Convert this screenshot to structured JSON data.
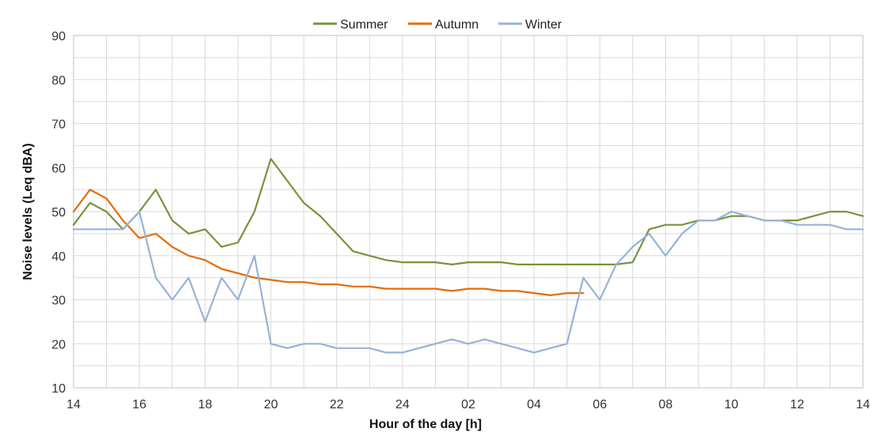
{
  "chart_data": {
    "type": "line",
    "title": "",
    "xlabel": "Hour of the day [h]",
    "ylabel": "Noise levels (Leq dBA)",
    "ylim": [
      10,
      90
    ],
    "y_ticks": [
      10,
      20,
      30,
      40,
      50,
      60,
      70,
      80,
      90
    ],
    "x_range_hours_elapsed": [
      0,
      24
    ],
    "x_tick_labels": [
      "14",
      "16",
      "18",
      "20",
      "22",
      "24",
      "02",
      "04",
      "06",
      "08",
      "10",
      "12",
      "14"
    ],
    "grid": true,
    "legend_position": "top-center",
    "series": [
      {
        "name": "Summer",
        "color": "#77933C",
        "points": [
          [
            14.0,
            47
          ],
          [
            14.5,
            52
          ],
          [
            15.0,
            50
          ],
          [
            15.5,
            46
          ],
          [
            16.0,
            50
          ],
          [
            16.5,
            55
          ],
          [
            17.0,
            48
          ],
          [
            17.5,
            45
          ],
          [
            18.0,
            46
          ],
          [
            18.5,
            42
          ],
          [
            19.0,
            43
          ],
          [
            19.5,
            50
          ],
          [
            20.0,
            62
          ],
          [
            20.5,
            57
          ],
          [
            21.0,
            52
          ],
          [
            21.5,
            49
          ],
          [
            22.0,
            45
          ],
          [
            22.5,
            41
          ],
          [
            23.0,
            40
          ],
          [
            23.5,
            39
          ],
          [
            24.0,
            38.5
          ],
          [
            24.5,
            38.5
          ],
          [
            25.0,
            38.5
          ],
          [
            25.5,
            38
          ],
          [
            26.0,
            38.5
          ],
          [
            26.5,
            38.5
          ],
          [
            27.0,
            38.5
          ],
          [
            27.5,
            38
          ],
          [
            28.0,
            38
          ],
          [
            28.5,
            38
          ],
          [
            29.0,
            38
          ],
          [
            29.5,
            38
          ],
          [
            30.0,
            38
          ],
          [
            30.5,
            38
          ],
          [
            31.0,
            38.5
          ],
          [
            31.5,
            46
          ],
          [
            32.0,
            47
          ],
          [
            32.5,
            47
          ],
          [
            33.0,
            48
          ],
          [
            33.5,
            48
          ],
          [
            34.0,
            49
          ],
          [
            34.5,
            49
          ],
          [
            35.0,
            48
          ],
          [
            35.5,
            48
          ],
          [
            36.0,
            48
          ],
          [
            36.5,
            49
          ],
          [
            37.0,
            50
          ],
          [
            37.5,
            50
          ],
          [
            38.0,
            49
          ]
        ]
      },
      {
        "name": "Autumn",
        "color": "#E36C09",
        "points": [
          [
            14.0,
            50
          ],
          [
            14.5,
            55
          ],
          [
            15.0,
            53
          ],
          [
            15.5,
            48
          ],
          [
            16.0,
            44
          ],
          [
            16.5,
            45
          ],
          [
            17.0,
            42
          ],
          [
            17.5,
            40
          ],
          [
            18.0,
            39
          ],
          [
            18.5,
            37
          ],
          [
            19.0,
            36
          ],
          [
            19.5,
            35
          ],
          [
            20.0,
            34.5
          ],
          [
            20.5,
            34
          ],
          [
            21.0,
            34
          ],
          [
            21.5,
            33.5
          ],
          [
            22.0,
            33.5
          ],
          [
            22.5,
            33
          ],
          [
            23.0,
            33
          ],
          [
            23.5,
            32.5
          ],
          [
            24.0,
            32.5
          ],
          [
            24.5,
            32.5
          ],
          [
            25.0,
            32.5
          ],
          [
            25.5,
            32
          ],
          [
            26.0,
            32.5
          ],
          [
            26.5,
            32.5
          ],
          [
            27.0,
            32
          ],
          [
            27.5,
            32
          ],
          [
            28.0,
            31.5
          ],
          [
            28.5,
            31
          ],
          [
            29.0,
            31.5
          ],
          [
            29.5,
            31.5
          ]
        ]
      },
      {
        "name": "Winter",
        "color": "#95B3D7",
        "points": [
          [
            14.0,
            46
          ],
          [
            14.5,
            46
          ],
          [
            15.0,
            46
          ],
          [
            15.5,
            46
          ],
          [
            16.0,
            50
          ],
          [
            16.5,
            35
          ],
          [
            17.0,
            30
          ],
          [
            17.5,
            35
          ],
          [
            18.0,
            25
          ],
          [
            18.5,
            35
          ],
          [
            19.0,
            30
          ],
          [
            19.5,
            40
          ],
          [
            20.0,
            20
          ],
          [
            20.5,
            19
          ],
          [
            21.0,
            20
          ],
          [
            21.5,
            20
          ],
          [
            22.0,
            19
          ],
          [
            22.5,
            19
          ],
          [
            23.0,
            19
          ],
          [
            23.5,
            18
          ],
          [
            24.0,
            18
          ],
          [
            24.5,
            19
          ],
          [
            25.0,
            20
          ],
          [
            25.5,
            21
          ],
          [
            26.0,
            20
          ],
          [
            26.5,
            21
          ],
          [
            27.0,
            20
          ],
          [
            27.5,
            19
          ],
          [
            28.0,
            18
          ],
          [
            28.5,
            19
          ],
          [
            29.0,
            20
          ],
          [
            29.5,
            35
          ],
          [
            30.0,
            30
          ],
          [
            30.5,
            38
          ],
          [
            31.0,
            42
          ],
          [
            31.5,
            45
          ],
          [
            32.0,
            40
          ],
          [
            32.5,
            45
          ],
          [
            33.0,
            48
          ],
          [
            33.5,
            48
          ],
          [
            34.0,
            50
          ],
          [
            34.5,
            49
          ],
          [
            35.0,
            48
          ],
          [
            35.5,
            48
          ],
          [
            36.0,
            47
          ],
          [
            36.5,
            47
          ],
          [
            37.0,
            47
          ],
          [
            37.5,
            46
          ],
          [
            38.0,
            46
          ]
        ]
      }
    ]
  }
}
